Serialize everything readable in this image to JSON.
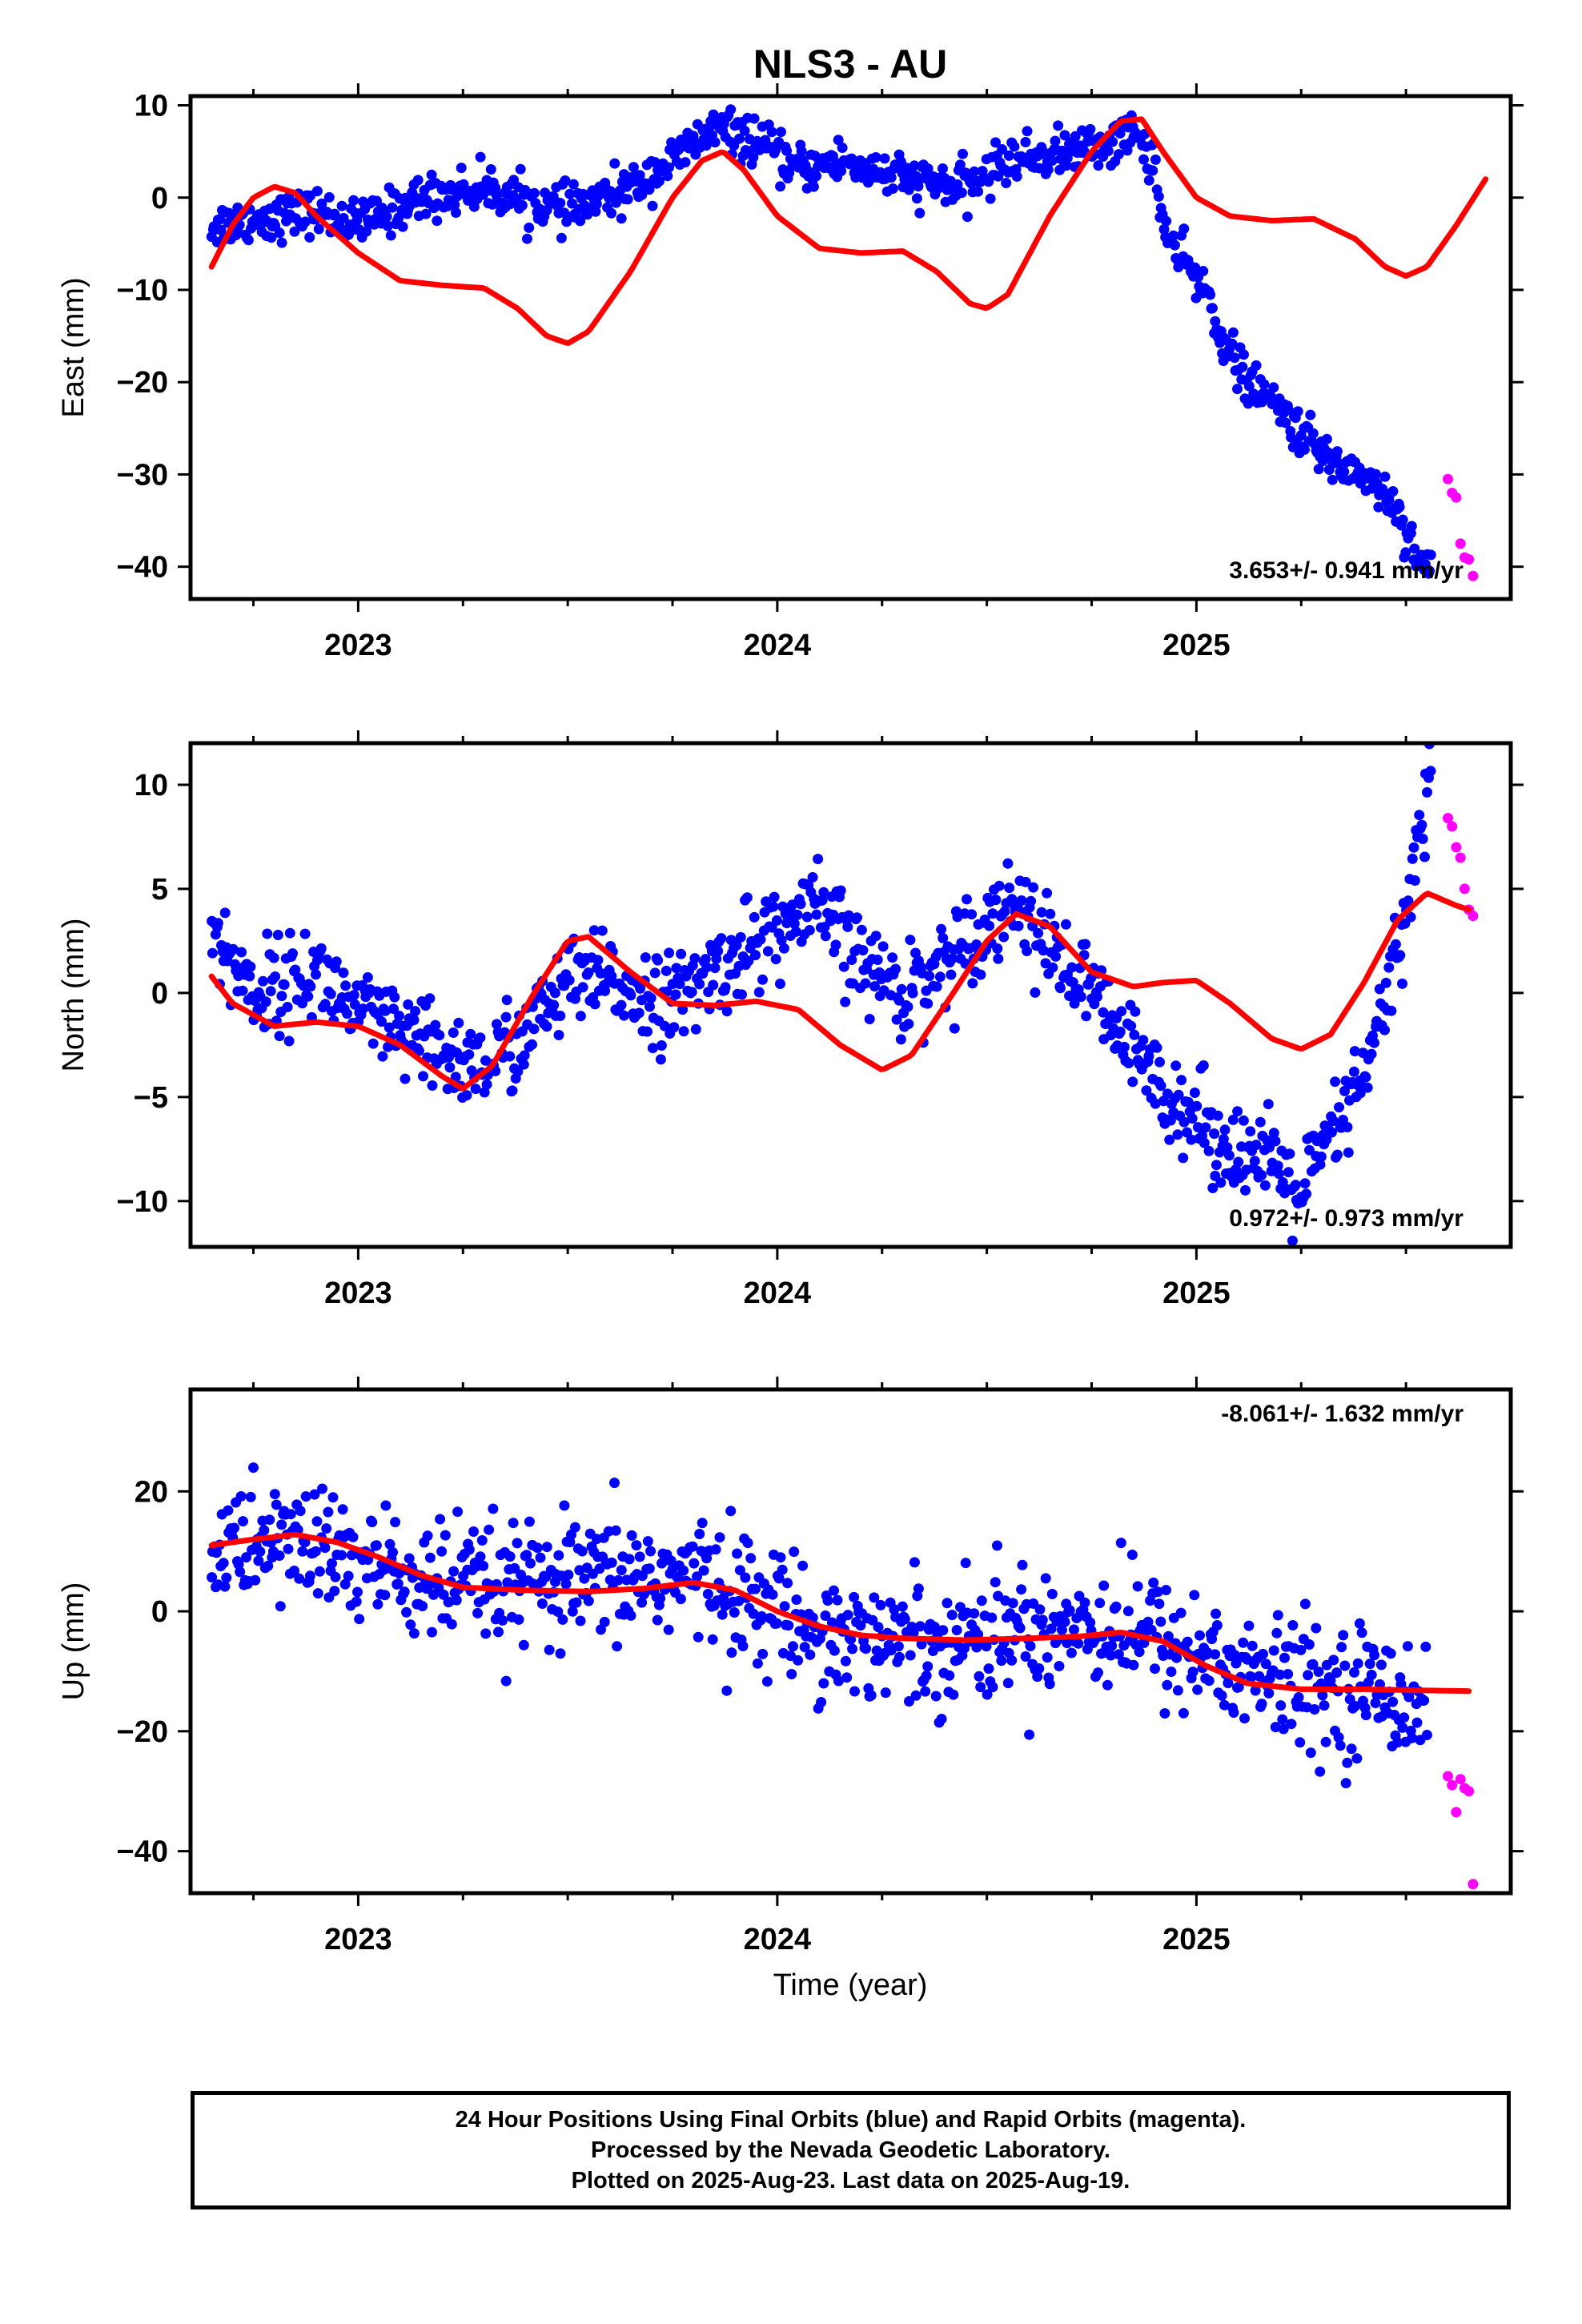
{
  "chart_data": {
    "title": "NLS3 - AU",
    "type": "scatter",
    "xlabel": "Time (year)",
    "xlim": [
      2022.6,
      2025.75
    ],
    "x_ticks": [
      2023,
      2024,
      2025
    ],
    "colors": {
      "final": "#0000ff",
      "rapid": "#ff00ff",
      "model": "#ff0000"
    },
    "panels": [
      {
        "ylabel": "East (mm)",
        "ylim": [
          -43.5,
          11
        ],
        "y_ticks": [
          10,
          0,
          -10,
          -20,
          -30,
          -40
        ],
        "y_tick_labels": [
          "10",
          "0",
          "−10",
          "−20",
          "−30",
          "−40"
        ],
        "rate_text": "3.653+/- 0.941 mm/yr",
        "final_trend": [
          [
            2022.65,
            -3
          ],
          [
            2022.9,
            -1.5
          ],
          [
            2023.0,
            -3
          ],
          [
            2023.15,
            0
          ],
          [
            2023.3,
            1
          ],
          [
            2023.5,
            -1.5
          ],
          [
            2023.65,
            1
          ],
          [
            2023.75,
            4
          ],
          [
            2023.85,
            7.5
          ],
          [
            2023.95,
            6
          ],
          [
            2024.05,
            3
          ],
          [
            2024.15,
            4
          ],
          [
            2024.3,
            2
          ],
          [
            2024.45,
            1
          ],
          [
            2024.55,
            4
          ],
          [
            2024.7,
            5
          ],
          [
            2024.8,
            6
          ],
          [
            2024.85,
            7
          ],
          [
            2024.9,
            4
          ],
          [
            2024.92,
            -3
          ],
          [
            2024.95,
            -6
          ],
          [
            2025.02,
            -10
          ],
          [
            2025.07,
            -16
          ],
          [
            2025.12,
            -20
          ],
          [
            2025.2,
            -23
          ],
          [
            2025.3,
            -28
          ],
          [
            2025.4,
            -30
          ],
          [
            2025.47,
            -33
          ],
          [
            2025.52,
            -38
          ],
          [
            2025.56,
            -41
          ]
        ],
        "final_noise": 1.2,
        "rapid_points": [
          [
            2025.6,
            -30.5
          ],
          [
            2025.61,
            -32
          ],
          [
            2025.62,
            -32.5
          ],
          [
            2025.63,
            -37.5
          ],
          [
            2025.64,
            -39
          ],
          [
            2025.65,
            -39.2
          ],
          [
            2025.66,
            -41
          ]
        ],
        "model": [
          [
            2022.65,
            -7.5
          ],
          [
            2022.7,
            -3
          ],
          [
            2022.75,
            0
          ],
          [
            2022.8,
            1.2
          ],
          [
            2022.85,
            0.5
          ],
          [
            2022.9,
            -2
          ],
          [
            2023.0,
            -6
          ],
          [
            2023.1,
            -9
          ],
          [
            2023.2,
            -9.5
          ],
          [
            2023.3,
            -9.8
          ],
          [
            2023.38,
            -12
          ],
          [
            2023.45,
            -15
          ],
          [
            2023.5,
            -15.8
          ],
          [
            2023.55,
            -14.5
          ],
          [
            2023.65,
            -8
          ],
          [
            2023.75,
            0
          ],
          [
            2023.82,
            4
          ],
          [
            2023.87,
            5
          ],
          [
            2023.92,
            3
          ],
          [
            2024.0,
            -2
          ],
          [
            2024.1,
            -5.5
          ],
          [
            2024.2,
            -6
          ],
          [
            2024.3,
            -5.8
          ],
          [
            2024.38,
            -8
          ],
          [
            2024.46,
            -11.5
          ],
          [
            2024.5,
            -12
          ],
          [
            2024.55,
            -10.5
          ],
          [
            2024.65,
            -2
          ],
          [
            2024.75,
            5
          ],
          [
            2024.82,
            8.3
          ],
          [
            2024.87,
            8.5
          ],
          [
            2024.92,
            5
          ],
          [
            2025.0,
            0
          ],
          [
            2025.08,
            -2
          ],
          [
            2025.18,
            -2.5
          ],
          [
            2025.28,
            -2.3
          ],
          [
            2025.38,
            -4.5
          ],
          [
            2025.45,
            -7.5
          ],
          [
            2025.5,
            -8.5
          ],
          [
            2025.55,
            -7.5
          ],
          [
            2025.62,
            -3
          ],
          [
            2025.69,
            2
          ]
        ]
      },
      {
        "ylabel": "North (mm)",
        "ylim": [
          -12.2,
          12
        ],
        "y_ticks": [
          10,
          5,
          0,
          -5,
          -10
        ],
        "y_tick_labels": [
          "10",
          "5",
          "0",
          "−5",
          "−10"
        ],
        "rate_text": "0.972+/- 0.973 mm/yr",
        "final_trend": [
          [
            2022.65,
            3
          ],
          [
            2022.75,
            0
          ],
          [
            2022.9,
            1
          ],
          [
            2023.0,
            -1
          ],
          [
            2023.1,
            -2
          ],
          [
            2023.2,
            -3
          ],
          [
            2023.3,
            -3.5
          ],
          [
            2023.4,
            -2
          ],
          [
            2023.5,
            0.5
          ],
          [
            2023.6,
            0.5
          ],
          [
            2023.75,
            -0.5
          ],
          [
            2023.85,
            1
          ],
          [
            2023.95,
            2.5
          ],
          [
            2024.05,
            3.5
          ],
          [
            2024.1,
            4
          ],
          [
            2024.2,
            1.5
          ],
          [
            2024.3,
            0
          ],
          [
            2024.4,
            1.5
          ],
          [
            2024.5,
            3.5
          ],
          [
            2024.58,
            4.5
          ],
          [
            2024.65,
            2
          ],
          [
            2024.75,
            0
          ],
          [
            2024.85,
            -3
          ],
          [
            2024.95,
            -5
          ],
          [
            2025.05,
            -7
          ],
          [
            2025.15,
            -8
          ],
          [
            2025.25,
            -9.5
          ],
          [
            2025.35,
            -6
          ],
          [
            2025.42,
            -3
          ],
          [
            2025.48,
            2
          ],
          [
            2025.52,
            6
          ],
          [
            2025.56,
            11
          ]
        ],
        "final_noise": 1.1,
        "rapid_points": [
          [
            2025.6,
            8.4
          ],
          [
            2025.61,
            8
          ],
          [
            2025.62,
            7
          ],
          [
            2025.63,
            6.5
          ],
          [
            2025.64,
            5
          ],
          [
            2025.65,
            4
          ],
          [
            2025.66,
            3.7
          ]
        ],
        "model": [
          [
            2022.65,
            0.8
          ],
          [
            2022.7,
            -0.5
          ],
          [
            2022.8,
            -1.6
          ],
          [
            2022.9,
            -1.4
          ],
          [
            2023.0,
            -1.6
          ],
          [
            2023.1,
            -2.5
          ],
          [
            2023.2,
            -4
          ],
          [
            2023.25,
            -4.6
          ],
          [
            2023.32,
            -3.5
          ],
          [
            2023.42,
            0
          ],
          [
            2023.5,
            2.5
          ],
          [
            2023.55,
            2.7
          ],
          [
            2023.65,
            1
          ],
          [
            2023.75,
            -0.5
          ],
          [
            2023.85,
            -0.6
          ],
          [
            2023.95,
            -0.4
          ],
          [
            2024.05,
            -0.8
          ],
          [
            2024.15,
            -2.5
          ],
          [
            2024.25,
            -3.7
          ],
          [
            2024.32,
            -3
          ],
          [
            2024.42,
            0
          ],
          [
            2024.5,
            2.5
          ],
          [
            2024.57,
            3.8
          ],
          [
            2024.65,
            3.2
          ],
          [
            2024.75,
            1
          ],
          [
            2024.85,
            0.3
          ],
          [
            2024.92,
            0.5
          ],
          [
            2025.0,
            0.6
          ],
          [
            2025.08,
            -0.5
          ],
          [
            2025.18,
            -2.2
          ],
          [
            2025.25,
            -2.7
          ],
          [
            2025.32,
            -2
          ],
          [
            2025.4,
            0.5
          ],
          [
            2025.48,
            3.5
          ],
          [
            2025.55,
            4.8
          ],
          [
            2025.62,
            4.2
          ],
          [
            2025.65,
            4
          ]
        ]
      },
      {
        "ylabel": "Up (mm)",
        "ylim": [
          -47,
          37
        ],
        "y_ticks": [
          20,
          0,
          -20,
          -40
        ],
        "y_tick_labels": [
          "20",
          "0",
          "−20",
          "−40"
        ],
        "rate_text": "-8.061+/- 1.632 mm/yr",
        "final_trend": [
          [
            2022.65,
            10
          ],
          [
            2022.85,
            12
          ],
          [
            2023.0,
            8
          ],
          [
            2023.2,
            4
          ],
          [
            2023.5,
            4
          ],
          [
            2023.7,
            6
          ],
          [
            2023.85,
            5
          ],
          [
            2024.0,
            0
          ],
          [
            2024.15,
            -4
          ],
          [
            2024.35,
            -5
          ],
          [
            2024.5,
            -4
          ],
          [
            2024.7,
            -2
          ],
          [
            2024.85,
            -3
          ],
          [
            2025.0,
            -7
          ],
          [
            2025.15,
            -11
          ],
          [
            2025.3,
            -13
          ],
          [
            2025.45,
            -13
          ],
          [
            2025.55,
            -15
          ]
        ],
        "final_noise": 5.2,
        "rapid_points": [
          [
            2025.6,
            -27.5
          ],
          [
            2025.61,
            -29
          ],
          [
            2025.62,
            -33.5
          ],
          [
            2025.63,
            -28
          ],
          [
            2025.64,
            -29.5
          ],
          [
            2025.65,
            -30
          ],
          [
            2025.66,
            -45.5
          ]
        ],
        "model": [
          [
            2022.65,
            11
          ],
          [
            2022.75,
            12
          ],
          [
            2022.85,
            12.8
          ],
          [
            2022.95,
            11.5
          ],
          [
            2023.05,
            9
          ],
          [
            2023.15,
            6
          ],
          [
            2023.25,
            4
          ],
          [
            2023.4,
            3.5
          ],
          [
            2023.55,
            3.3
          ],
          [
            2023.68,
            3.8
          ],
          [
            2023.8,
            4.8
          ],
          [
            2023.9,
            3.5
          ],
          [
            2024.0,
            0
          ],
          [
            2024.1,
            -2.5
          ],
          [
            2024.2,
            -4
          ],
          [
            2024.3,
            -4.5
          ],
          [
            2024.45,
            -4.8
          ],
          [
            2024.6,
            -4.5
          ],
          [
            2024.72,
            -4.2
          ],
          [
            2024.82,
            -3.5
          ],
          [
            2024.92,
            -5
          ],
          [
            2025.02,
            -9
          ],
          [
            2025.12,
            -12
          ],
          [
            2025.25,
            -13
          ],
          [
            2025.4,
            -13
          ],
          [
            2025.55,
            -13.2
          ],
          [
            2025.65,
            -13.3
          ]
        ]
      }
    ]
  },
  "footer": {
    "line1": "24 Hour Positions Using Final Orbits (blue) and Rapid Orbits (magenta).",
    "line2": "Processed by the Nevada Geodetic Laboratory.",
    "line3": "Plotted on 2025-Aug-23. Last data on 2025-Aug-19."
  }
}
